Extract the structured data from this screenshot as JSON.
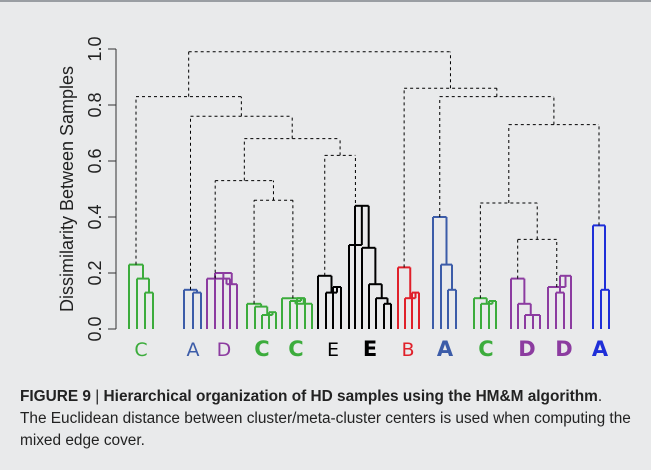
{
  "chart_data": {
    "type": "dendrogram",
    "ylabel": "Dissimilarity Between Samples",
    "ylim": [
      0.0,
      1.0
    ],
    "yticks": [
      "0.0",
      "0.2",
      "0.4",
      "0.6",
      "0.8",
      "1.0"
    ],
    "leaf_groups": [
      {
        "label": "C",
        "color": "#3cac3c",
        "bold": false
      },
      {
        "label": "A",
        "color": "#3c5ca8",
        "bold": false
      },
      {
        "label": "D",
        "color": "#8c3ca0",
        "bold": false
      },
      {
        "label": "C",
        "color": "#3cac3c",
        "bold": true
      },
      {
        "label": "C",
        "color": "#3cac3c",
        "bold": true
      },
      {
        "label": "E",
        "color": "#000000",
        "bold": false
      },
      {
        "label": "E",
        "color": "#000000",
        "bold": true
      },
      {
        "label": "B",
        "color": "#e0202a",
        "bold": false
      },
      {
        "label": "A",
        "color": "#3c5ca8",
        "bold": true
      },
      {
        "label": "C",
        "color": "#3cac3c",
        "bold": true
      },
      {
        "label": "D",
        "color": "#8c3ca0",
        "bold": true
      },
      {
        "label": "D",
        "color": "#8c3ca0",
        "bold": true
      },
      {
        "label": "A",
        "color": "#1f2fd8",
        "bold": true
      }
    ],
    "meta_merges": [
      {
        "between": "C+A+D+C+C+E+E",
        "and": "B+A+C+D+D+A",
        "height": 0.99
      },
      {
        "between": "C",
        "and": "A+D+C+C+E+E",
        "height": 0.83
      },
      {
        "between": "A",
        "and": "D+C+C+E+E",
        "height": 0.76
      },
      {
        "between": "D+C+C",
        "and": "E+E",
        "height": 0.68
      },
      {
        "between": "D",
        "and": "C+C",
        "height": 0.53
      },
      {
        "between": "C",
        "and": "C",
        "height": 0.46
      },
      {
        "between": "E",
        "and": "E",
        "height": 0.62
      },
      {
        "between": "B",
        "and": "A+C+D+D+A",
        "height": 0.86
      },
      {
        "between": "A",
        "and": "C+D+D+A",
        "height": 0.83
      },
      {
        "between": "C+D+D",
        "and": "A",
        "height": 0.73
      },
      {
        "between": "C",
        "and": "D+D",
        "height": 0.45
      },
      {
        "between": "D",
        "and": "D",
        "height": 0.32
      }
    ]
  },
  "caption": {
    "label": "FIGURE 9",
    "separator": " | ",
    "title": "Hierarchical organization of HD samples using the HM&M algorithm",
    "text": ". The Euclidean distance between cluster/meta-cluster centers is used when computing the mixed edge cover."
  }
}
